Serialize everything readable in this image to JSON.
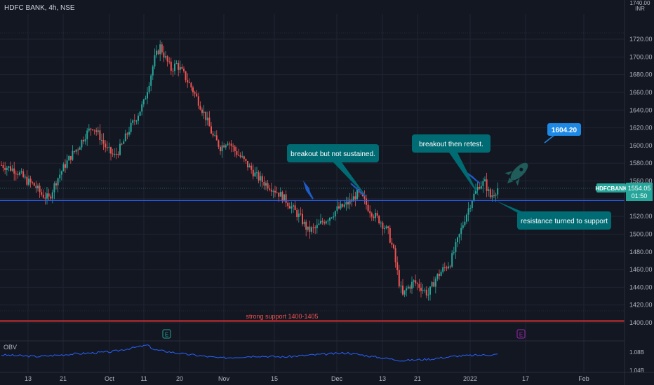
{
  "header": {
    "symbol": "HDFC BANK, 4h, NSE"
  },
  "price_axis": {
    "currency": "INR",
    "top_label": "1740.00",
    "ticks": [
      "1720.00",
      "1700.00",
      "1680.00",
      "1660.00",
      "1640.00",
      "1620.00",
      "1600.00",
      "1580.00",
      "1560.00",
      "1540.00",
      "1520.00",
      "1500.00",
      "1480.00",
      "1460.00",
      "1440.00",
      "1420.00",
      "1400.00"
    ]
  },
  "time_axis": {
    "ticks": [
      "13",
      "21",
      "Oct",
      "11",
      "20",
      "Nov",
      "15",
      "Dec",
      "13",
      "21",
      "2022",
      "17",
      "Feb"
    ]
  },
  "price_badge": {
    "symbol": "HDFCBANK",
    "price": "1554.05",
    "countdown": "01:50",
    "color": "#26a69a"
  },
  "target_label": {
    "text": "1604.20",
    "color": "#1e88e5"
  },
  "annotations": [
    {
      "text": "breakout but not sustained."
    },
    {
      "text": "breakout then retest."
    },
    {
      "text": "resistance turned to support"
    },
    {
      "text": "strong support 1400-1405"
    }
  ],
  "event_markers": [
    {
      "letter": "E",
      "color": "#26a69a"
    },
    {
      "letter": "E",
      "color": "#9c27b0"
    }
  ],
  "rocket": {
    "icon": "rocket-icon",
    "color": "#1f5c5a"
  },
  "obv": {
    "label": "OBV",
    "ticks": [
      "1.08B",
      "1.04B"
    ],
    "series_color": "#2962ff"
  },
  "colors": {
    "up": "#26a69a",
    "down": "#ef5350",
    "background": "#131722",
    "grid": "#1f2433",
    "resistance_line": "#2962ff",
    "support_line": "#d32f2f",
    "callout": "#006b73"
  },
  "chart_data": {
    "type": "candlestick",
    "title": "HDFC BANK, 4h, NSE",
    "ylim": [
      1400,
      1745
    ],
    "grid": true,
    "resistance_level": 1538,
    "support_level": 1402,
    "target_price": 1604.2,
    "last_price": 1554.05,
    "x_ticks": [
      "13",
      "21",
      "Oct",
      "11",
      "20",
      "Nov",
      "15",
      "Dec",
      "13",
      "21",
      "2022",
      "17",
      "Feb"
    ],
    "waypoints": [
      [
        0,
        1578
      ],
      [
        8,
        1572
      ],
      [
        14,
        1560
      ],
      [
        18,
        1555
      ],
      [
        22,
        1545
      ],
      [
        26,
        1540
      ],
      [
        30,
        1560
      ],
      [
        34,
        1575
      ],
      [
        38,
        1588
      ],
      [
        42,
        1598
      ],
      [
        46,
        1612
      ],
      [
        50,
        1622
      ],
      [
        54,
        1610
      ],
      [
        58,
        1595
      ],
      [
        62,
        1588
      ],
      [
        66,
        1600
      ],
      [
        70,
        1618
      ],
      [
        74,
        1632
      ],
      [
        78,
        1648
      ],
      [
        81,
        1672
      ],
      [
        84,
        1698
      ],
      [
        87,
        1712
      ],
      [
        90,
        1698
      ],
      [
        93,
        1686
      ],
      [
        96,
        1692
      ],
      [
        100,
        1680
      ],
      [
        104,
        1666
      ],
      [
        108,
        1650
      ],
      [
        112,
        1632
      ],
      [
        116,
        1610
      ],
      [
        120,
        1598
      ],
      [
        124,
        1606
      ],
      [
        128,
        1594
      ],
      [
        132,
        1585
      ],
      [
        136,
        1575
      ],
      [
        140,
        1565
      ],
      [
        144,
        1558
      ],
      [
        148,
        1553
      ],
      [
        152,
        1546
      ],
      [
        156,
        1538
      ],
      [
        160,
        1528
      ],
      [
        164,
        1518
      ],
      [
        168,
        1504
      ],
      [
        172,
        1506
      ],
      [
        176,
        1514
      ],
      [
        180,
        1520
      ],
      [
        184,
        1528
      ],
      [
        188,
        1532
      ],
      [
        192,
        1538
      ],
      [
        195,
        1546
      ],
      [
        198,
        1540
      ],
      [
        201,
        1530
      ],
      [
        204,
        1522
      ],
      [
        208,
        1514
      ],
      [
        212,
        1502
      ],
      [
        215,
        1480
      ],
      [
        218,
        1445
      ],
      [
        220,
        1430
      ],
      [
        222,
        1438
      ],
      [
        226,
        1446
      ],
      [
        230,
        1440
      ],
      [
        234,
        1432
      ],
      [
        238,
        1450
      ],
      [
        242,
        1460
      ],
      [
        246,
        1468
      ],
      [
        250,
        1492
      ],
      [
        254,
        1518
      ],
      [
        258,
        1540
      ],
      [
        262,
        1556
      ],
      [
        265,
        1558
      ],
      [
        268,
        1542
      ],
      [
        272,
        1552
      ]
    ],
    "obv_waypoints": [
      [
        0,
        1.064
      ],
      [
        20,
        1.061
      ],
      [
        40,
        1.066
      ],
      [
        60,
        1.07
      ],
      [
        80,
        1.083
      ],
      [
        84,
        1.074
      ],
      [
        100,
        1.066
      ],
      [
        120,
        1.058
      ],
      [
        140,
        1.062
      ],
      [
        155,
        1.06
      ],
      [
        170,
        1.064
      ],
      [
        190,
        1.068
      ],
      [
        205,
        1.06
      ],
      [
        220,
        1.053
      ],
      [
        235,
        1.056
      ],
      [
        250,
        1.062
      ],
      [
        265,
        1.064
      ],
      [
        272,
        1.065
      ]
    ],
    "obv_ylim": [
      1.03,
      1.09
    ]
  }
}
